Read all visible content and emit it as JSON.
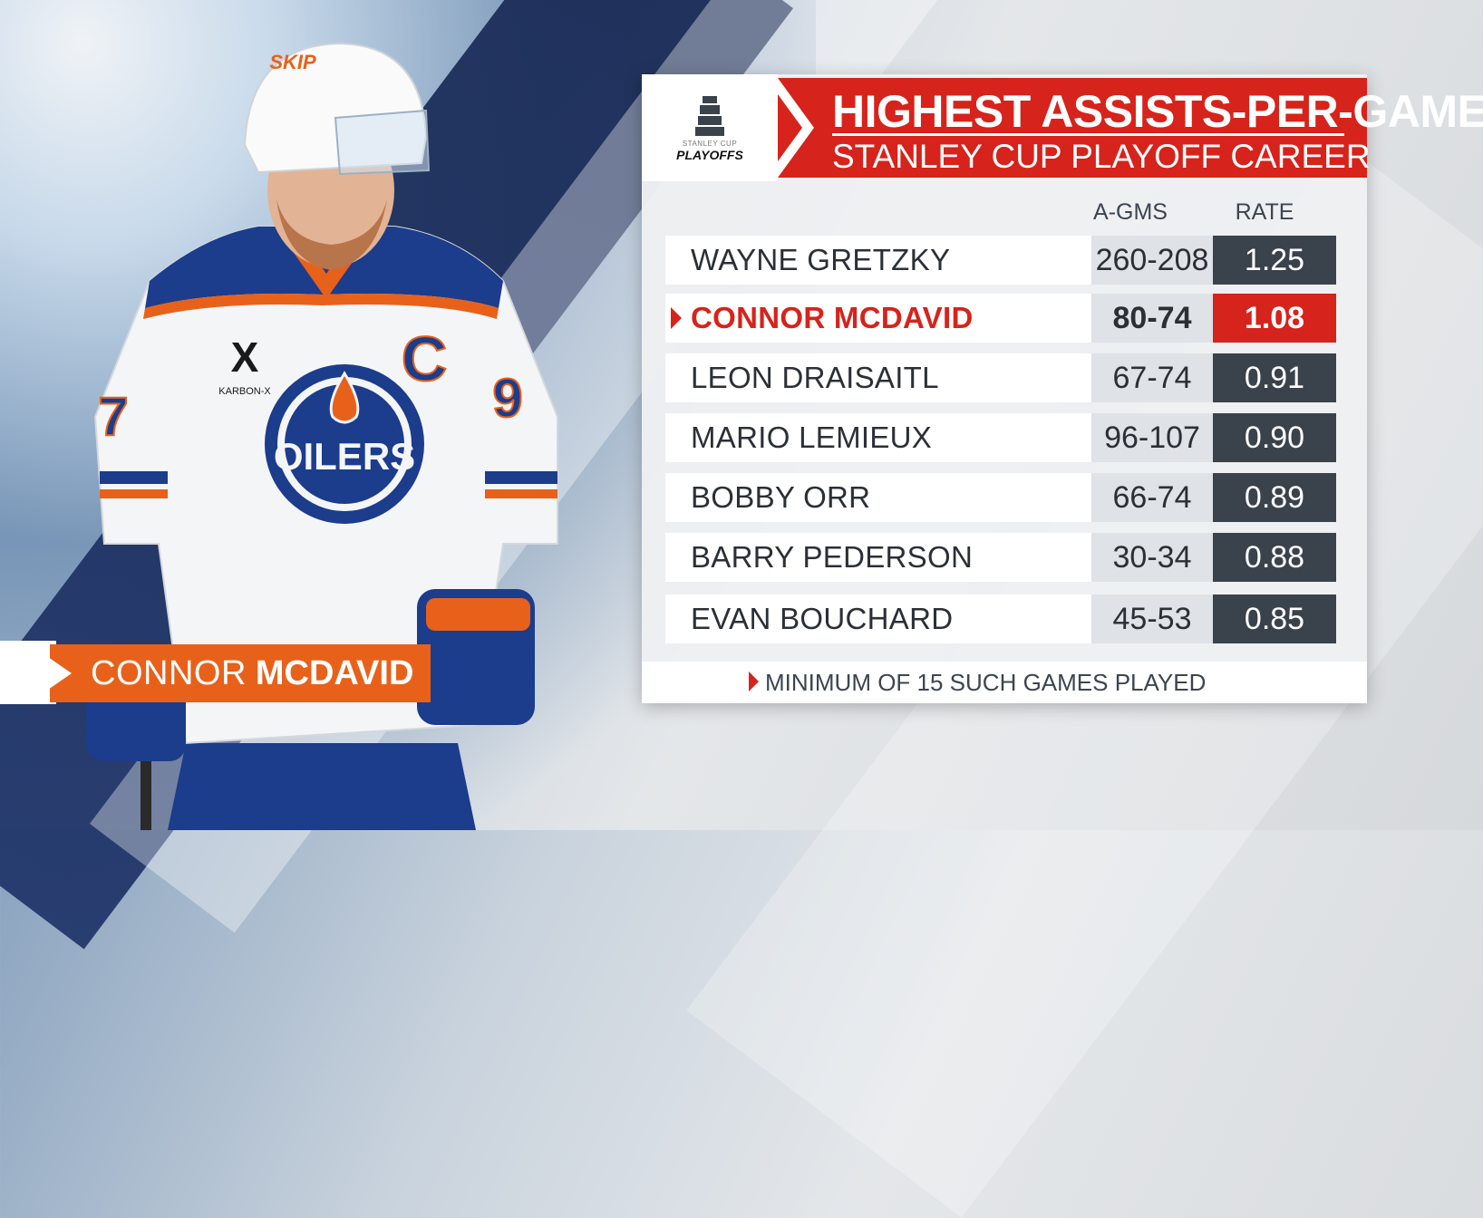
{
  "header": {
    "title": "HIGHEST ASSISTS-PER-GAME",
    "subtitle": "STANLEY CUP PLAYOFF CAREER"
  },
  "logo": {
    "small_text": "STANLEY CUP",
    "big_text": "PLAYOFFS"
  },
  "columns": {
    "games": "A-GMS",
    "rate": "RATE"
  },
  "rows": [
    {
      "name": "WAYNE GRETZKY",
      "games": "260-208",
      "rate": "1.25"
    },
    {
      "name": "CONNOR MCDAVID",
      "games": "80-74",
      "rate": "1.08"
    },
    {
      "name": "LEON DRAISAITL",
      "games": "67-74",
      "rate": "0.91"
    },
    {
      "name": "MARIO LEMIEUX",
      "games": "96-107",
      "rate": "0.90"
    },
    {
      "name": "BOBBY ORR",
      "games": "66-74",
      "rate": "0.89"
    },
    {
      "name": "BARRY PEDERSON",
      "games": "30-34",
      "rate": "0.88"
    },
    {
      "name": "EVAN BOUCHARD",
      "games": "45-53",
      "rate": "0.85"
    }
  ],
  "highlighted_row": 1,
  "footnote": "MINIMUM OF 15 SUCH GAMES PLAYED",
  "nameplate": {
    "first": "CONNOR",
    "last": "MCDAVID"
  },
  "jersey": {
    "helmet_sponsor": "SKIP",
    "patch": "KARBON-X",
    "captain": "C",
    "crest": "OILERS",
    "number_left": "7",
    "number_right": "9"
  },
  "colors": {
    "accent_red": "#d6231b",
    "nameplate_orange": "#e8611a",
    "rate_dark": "#3a424c",
    "oilers_blue": "#1c3c8c",
    "oilers_orange": "#e8611a"
  }
}
